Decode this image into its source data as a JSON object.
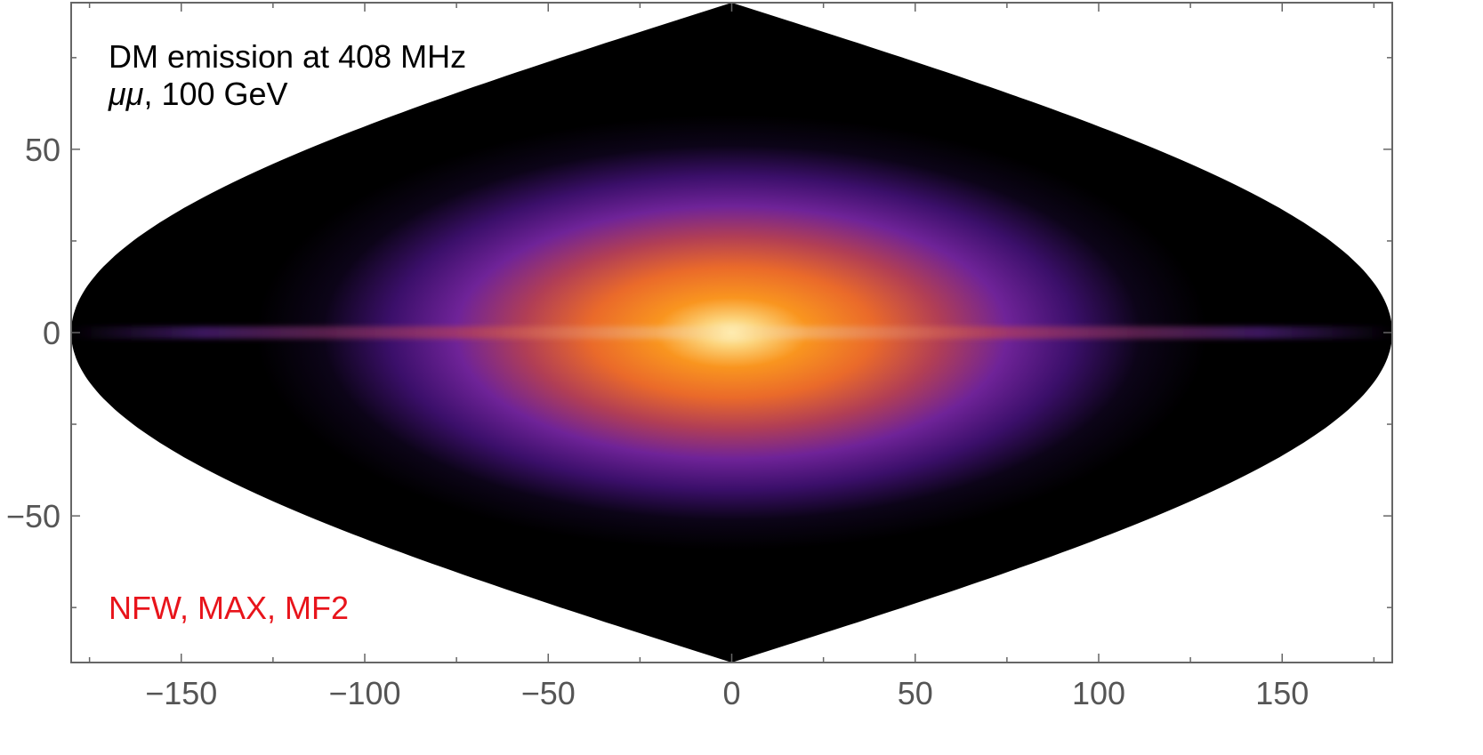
{
  "chart_data": {
    "type": "heatmap",
    "title": "",
    "xlabel": "",
    "ylabel": "",
    "xlim": [
      -180,
      180
    ],
    "ylim": [
      -90,
      90
    ],
    "x_ticks": [
      -150,
      -100,
      -50,
      0,
      50,
      100,
      150
    ],
    "y_ticks": [
      -50,
      0,
      50
    ],
    "x_tick_labels": [
      "−150",
      "−100",
      "−50",
      "0",
      "50",
      "100",
      "150"
    ],
    "y_tick_labels": [
      "−50",
      "0",
      "50"
    ],
    "projection": "sinusoidal (diamond-shaped full-sky map)",
    "colormap": "inferno-like (black → purple → orange → pale yellow)",
    "peak_location": [
      0,
      0
    ],
    "annotations": {
      "line1": "DM emission at 408 MHz",
      "line2_channel": "μμ",
      "line2_rest": ", 100 GeV",
      "model": "NFW, MAX, MF2"
    },
    "colors": {
      "model_text": "#e8141b",
      "annotation_text": "#000000",
      "axes": "#666666",
      "tick_labels": "#555555"
    }
  }
}
